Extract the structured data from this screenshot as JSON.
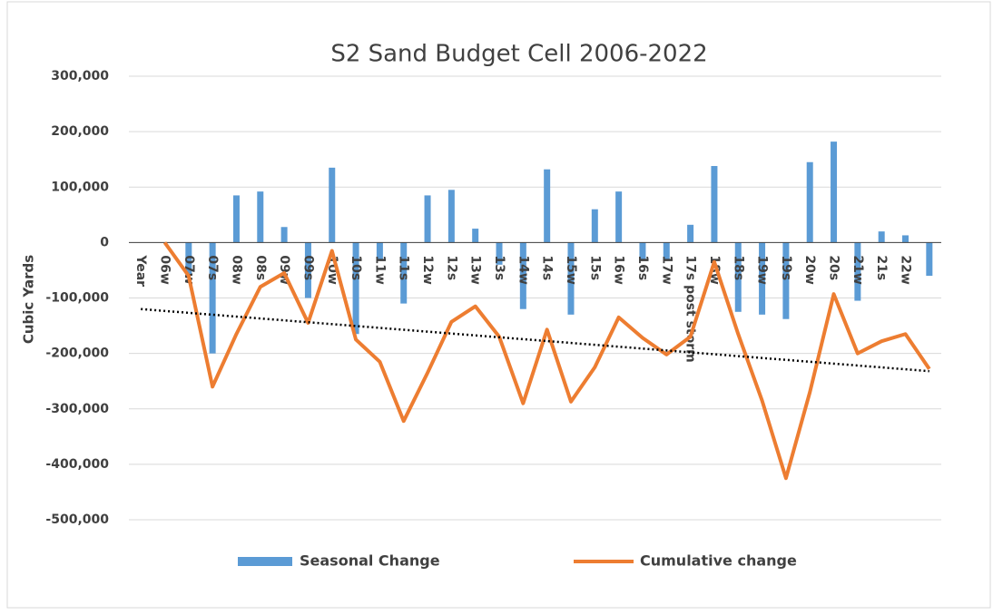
{
  "chart_data": {
    "type": "bar-line",
    "title": "S2 Sand Budget Cell  2006-2022",
    "y_label": "Cubic Yards",
    "categories": [
      "Year",
      "06w",
      "07w",
      "07s",
      "08w",
      "08s",
      "09w",
      "09s",
      "10w",
      "10s",
      "11w",
      "11s",
      "12w",
      "12s",
      "13w",
      "13s",
      "14w",
      "14s",
      "15w",
      "15s",
      "16w",
      "16s",
      "17w",
      "17s post storm",
      "18w",
      "18s",
      "19w",
      "19s",
      "20w",
      "20s",
      "21w",
      "21s",
      "22w",
      null
    ],
    "series": [
      {
        "name": "Seasonal Change",
        "type": "bar",
        "color": "#5b9bd5",
        "values": [
          null,
          null,
          -60000,
          -200000,
          85000,
          92000,
          28000,
          -100000,
          135000,
          -165000,
          -30000,
          -110000,
          85000,
          95000,
          25000,
          -40000,
          -120000,
          132000,
          -130000,
          60000,
          92000,
          -30000,
          -30000,
          32000,
          138000,
          -125000,
          -130000,
          -138000,
          145000,
          182000,
          -105000,
          20000,
          13000,
          -60000
        ]
      },
      {
        "name": "Cumulative change",
        "type": "line",
        "color": "#ed7d31",
        "values": [
          null,
          0,
          -60000,
          -260000,
          -165000,
          -80000,
          -55000,
          -145000,
          -15000,
          -175000,
          -215000,
          -322000,
          -235000,
          -143000,
          -115000,
          -170000,
          -290000,
          -157000,
          -287000,
          -225000,
          -135000,
          -172000,
          -202000,
          -170000,
          -35000,
          -165000,
          -285000,
          -425000,
          -270000,
          -93000,
          -200000,
          -178000,
          -165000,
          -228000
        ]
      }
    ],
    "trendline": {
      "color": "#000000",
      "values": [
        -120000,
        -232000
      ]
    },
    "ylim": [
      -500000,
      300000
    ],
    "yticks": [
      {
        "value": -500000,
        "label": "-500,000"
      },
      {
        "value": -400000,
        "label": "-400,000"
      },
      {
        "value": -300000,
        "label": "-300,000"
      },
      {
        "value": -200000,
        "label": "-200,000"
      },
      {
        "value": -100000,
        "label": "-100,000"
      },
      0,
      {
        "value": 100000,
        "label": "100,000"
      },
      {
        "value": 200000,
        "label": "200,000"
      },
      {
        "value": 300000,
        "label": "300,000"
      }
    ],
    "grid": true,
    "legend": "bottom"
  }
}
